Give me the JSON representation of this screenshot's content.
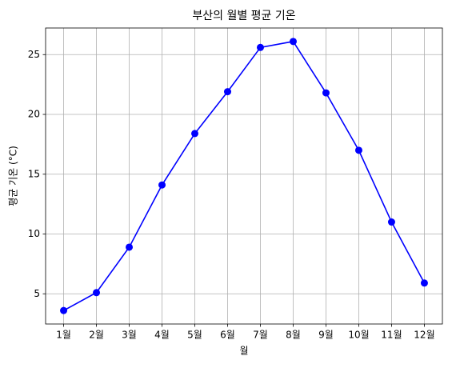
{
  "chart_data": {
    "type": "line",
    "title": "부산의 월별 평균 기온",
    "xlabel": "월",
    "ylabel": "평균 기온 (°C)",
    "categories": [
      "1월",
      "2월",
      "3월",
      "4월",
      "5월",
      "6월",
      "7월",
      "8월",
      "9월",
      "10월",
      "11월",
      "12월"
    ],
    "series": [
      {
        "name": "평균 기온",
        "color": "#0000ff",
        "values": [
          3.6,
          5.1,
          8.9,
          14.1,
          18.4,
          21.9,
          25.6,
          26.1,
          21.8,
          17.0,
          11.0,
          5.9
        ]
      }
    ],
    "ylim": [
      2.475,
      27.225
    ],
    "yticks": [
      5,
      10,
      15,
      20,
      25
    ],
    "grid": true,
    "markers": true
  }
}
